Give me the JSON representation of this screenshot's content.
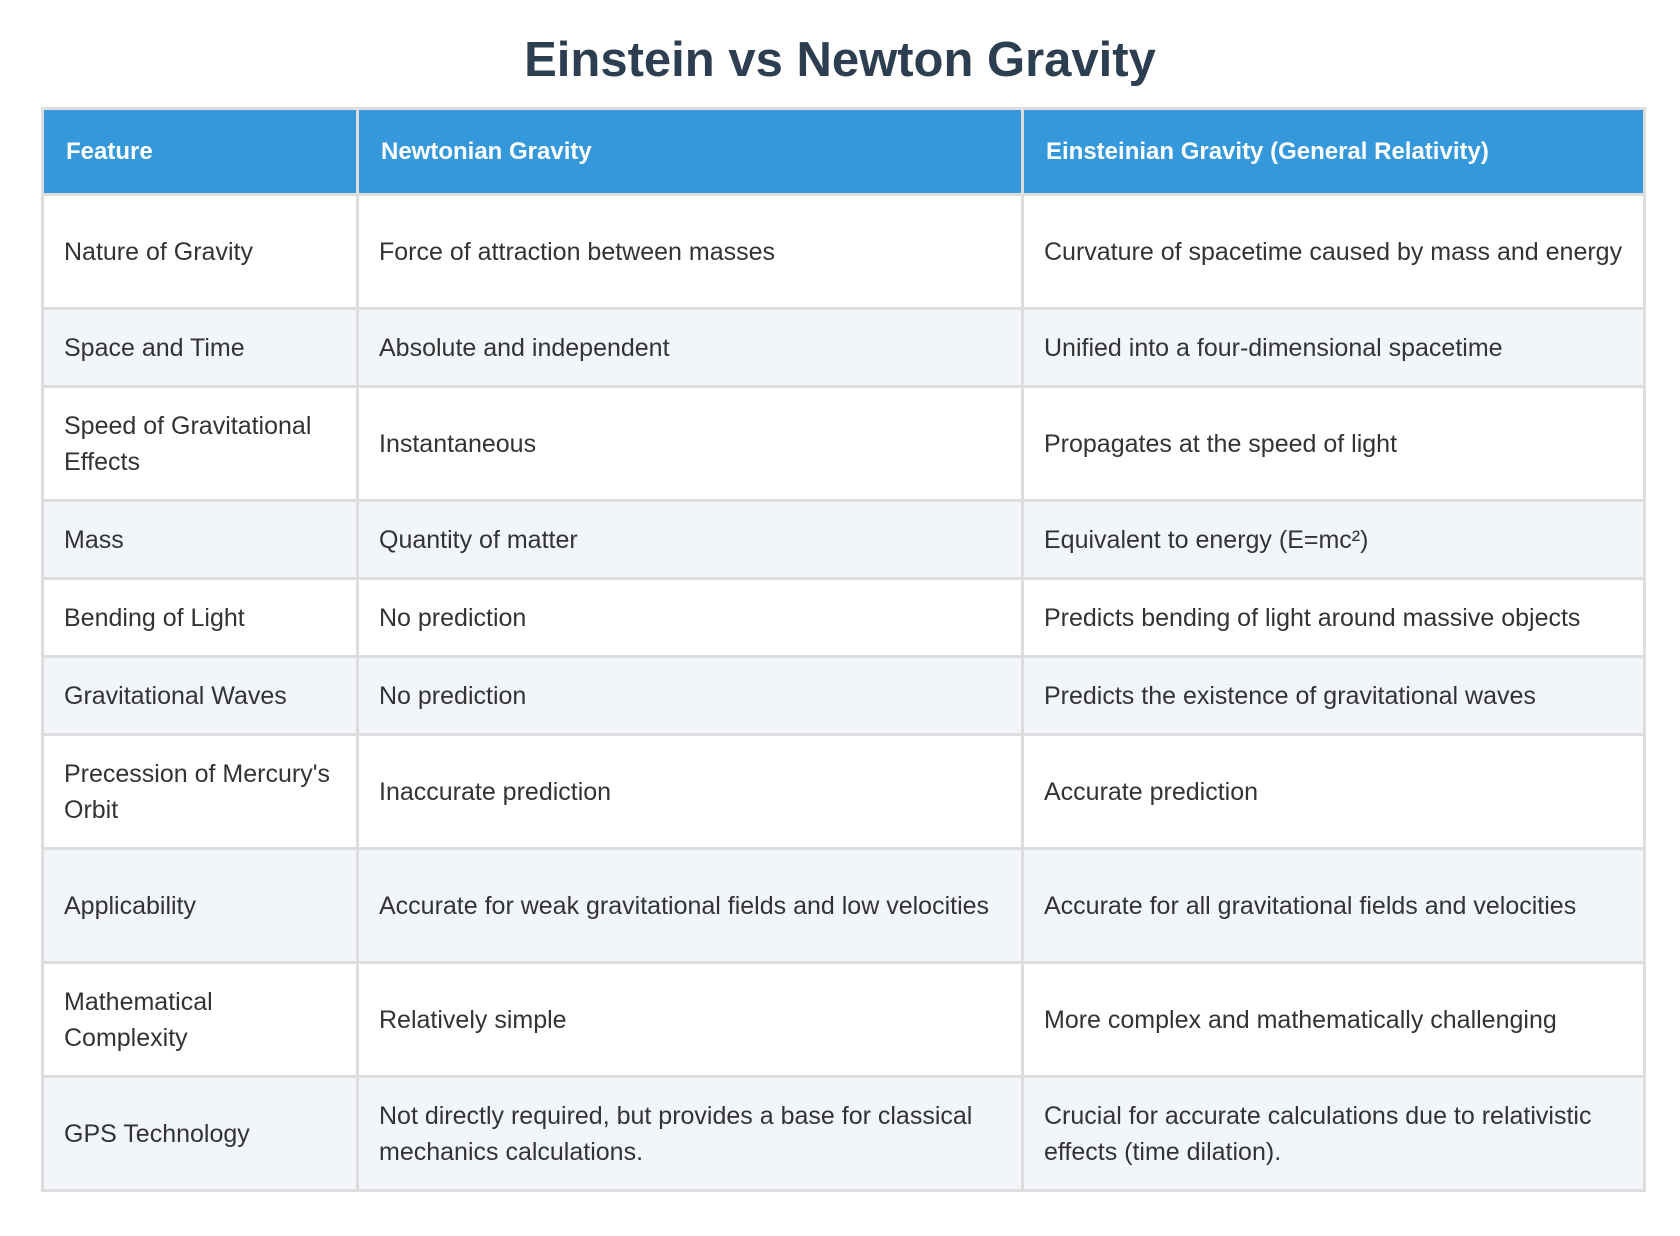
{
  "title": "Einstein vs Newton Gravity",
  "table": {
    "headers": [
      "Feature",
      "Newtonian Gravity",
      "Einsteinian Gravity (General Relativity)"
    ],
    "rows": [
      [
        "Nature of Gravity",
        "Force of attraction between masses",
        "Curvature of spacetime caused by mass and energy"
      ],
      [
        "Space and Time",
        "Absolute and independent",
        "Unified into a four-dimensional spacetime"
      ],
      [
        "Speed of Gravitational Effects",
        "Instantaneous",
        "Propagates at the speed of light"
      ],
      [
        "Mass",
        "Quantity of matter",
        "Equivalent to energy (E=mc²)"
      ],
      [
        "Bending of Light",
        "No prediction",
        "Predicts bending of light around massive objects"
      ],
      [
        "Gravitational Waves",
        "No prediction",
        "Predicts the existence of gravitational waves"
      ],
      [
        "Precession of Mercury's Orbit",
        "Inaccurate prediction",
        "Accurate prediction"
      ],
      [
        "Applicability",
        "Accurate for weak gravitational fields and low velocities",
        "Accurate for all gravitational fields and velocities"
      ],
      [
        "Mathematical Complexity",
        "Relatively simple",
        "More complex and mathematically challenging"
      ],
      [
        "GPS Technology",
        "Not directly required, but provides a base for classical mechanics calculations.",
        "Crucial for accurate calculations due to relativistic effects (time dilation)."
      ]
    ]
  }
}
